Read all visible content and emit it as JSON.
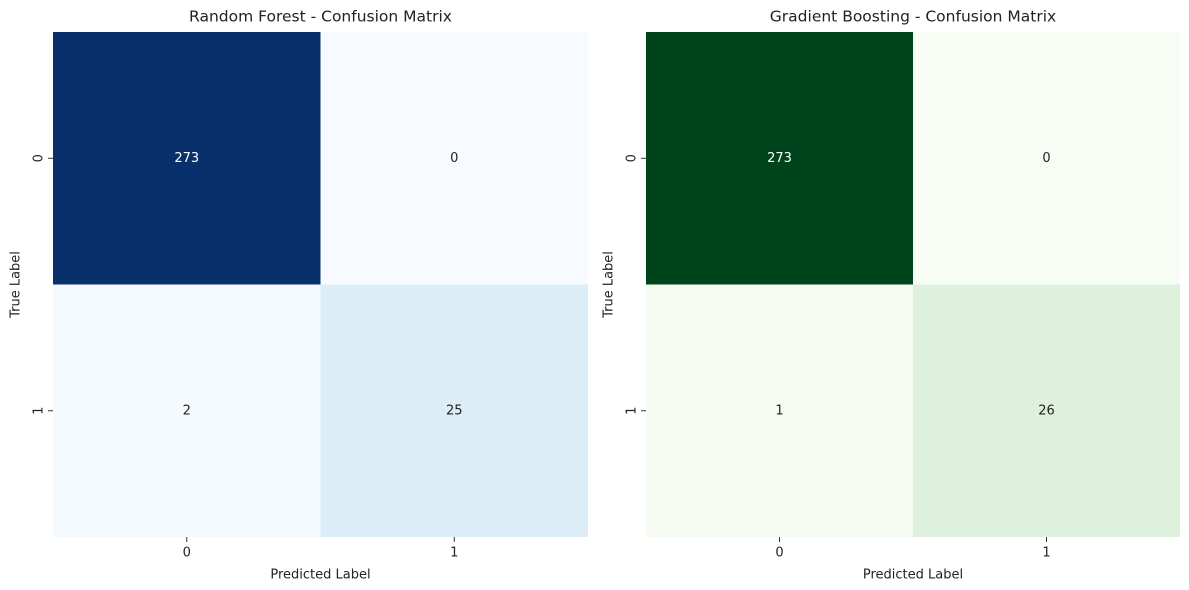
{
  "chart_data": [
    {
      "type": "heatmap",
      "title": "Random Forest - Confusion Matrix",
      "xlabel": "Predicted Label",
      "ylabel": "True Label",
      "x": [
        "0",
        "1"
      ],
      "y": [
        "0",
        "1"
      ],
      "values": [
        [
          273,
          0
        ],
        [
          2,
          25
        ]
      ],
      "colors": [
        "#f7fbff",
        "#6baed6",
        "#08306b"
      ]
    },
    {
      "type": "heatmap",
      "title": "Gradient Boosting - Confusion Matrix",
      "xlabel": "Predicted Label",
      "ylabel": "True Label",
      "x": [
        "0",
        "1"
      ],
      "y": [
        "0",
        "1"
      ],
      "values": [
        [
          273,
          0
        ],
        [
          1,
          26
        ]
      ],
      "colors": [
        "#f7fcf5",
        "#74c476",
        "#00441b"
      ]
    }
  ]
}
